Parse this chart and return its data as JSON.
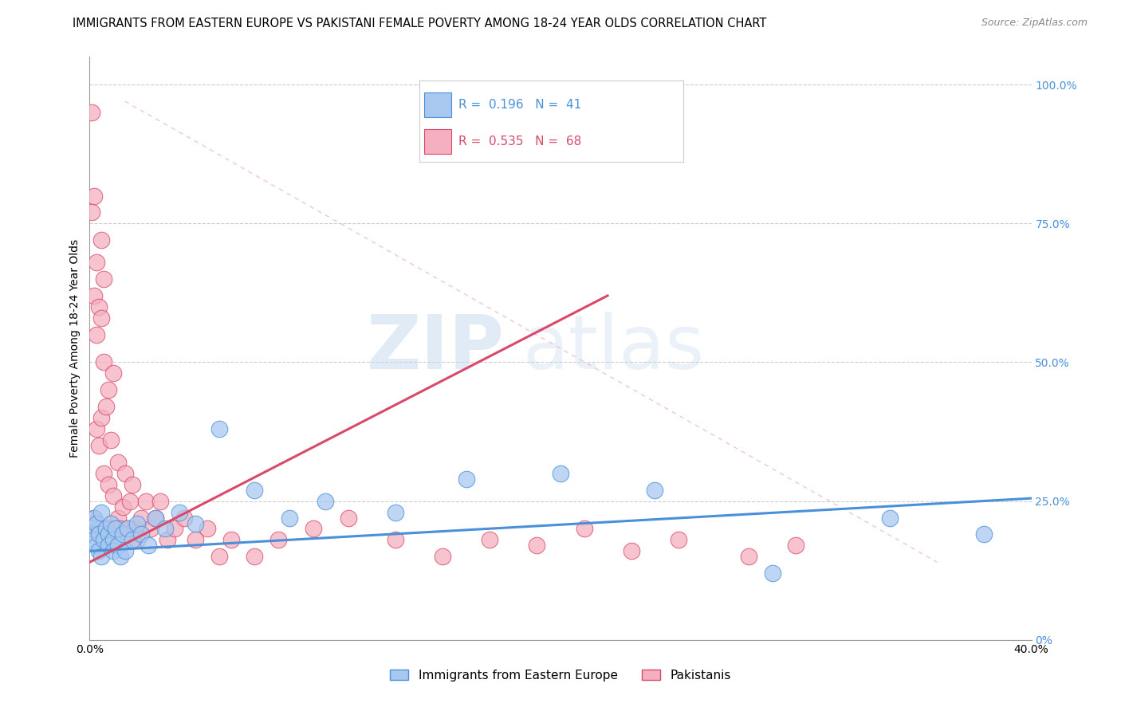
{
  "title": "IMMIGRANTS FROM EASTERN EUROPE VS PAKISTANI FEMALE POVERTY AMONG 18-24 YEAR OLDS CORRELATION CHART",
  "source": "Source: ZipAtlas.com",
  "ylabel": "Female Poverty Among 18-24 Year Olds",
  "xlim": [
    0.0,
    0.4
  ],
  "ylim": [
    0.0,
    1.05
  ],
  "legend_labels": [
    "Immigrants from Eastern Europe",
    "Pakistanis"
  ],
  "blue_R": "0.196",
  "blue_N": "41",
  "pink_R": "0.535",
  "pink_N": "68",
  "blue_color": "#a8c8f0",
  "pink_color": "#f4afc0",
  "blue_line_color": "#4a90d9",
  "pink_line_color": "#d94a6a",
  "watermark_zip": "ZIP",
  "watermark_atlas": "atlas",
  "blue_scatter_x": [
    0.001,
    0.002,
    0.002,
    0.003,
    0.003,
    0.004,
    0.004,
    0.005,
    0.005,
    0.006,
    0.007,
    0.008,
    0.008,
    0.009,
    0.01,
    0.01,
    0.011,
    0.012,
    0.013,
    0.014,
    0.015,
    0.016,
    0.018,
    0.02,
    0.022,
    0.025,
    0.028,
    0.032,
    0.038,
    0.045,
    0.055,
    0.07,
    0.085,
    0.1,
    0.13,
    0.16,
    0.2,
    0.24,
    0.29,
    0.34,
    0.38
  ],
  "blue_scatter_y": [
    0.2,
    0.22,
    0.18,
    0.21,
    0.17,
    0.19,
    0.16,
    0.23,
    0.15,
    0.18,
    0.2,
    0.19,
    0.17,
    0.21,
    0.18,
    0.16,
    0.2,
    0.17,
    0.15,
    0.19,
    0.16,
    0.2,
    0.18,
    0.21,
    0.19,
    0.17,
    0.22,
    0.2,
    0.23,
    0.21,
    0.38,
    0.27,
    0.22,
    0.25,
    0.23,
    0.29,
    0.3,
    0.27,
    0.12,
    0.22,
    0.19
  ],
  "pink_scatter_x": [
    0.001,
    0.001,
    0.001,
    0.002,
    0.002,
    0.002,
    0.002,
    0.003,
    0.003,
    0.003,
    0.003,
    0.004,
    0.004,
    0.004,
    0.005,
    0.005,
    0.005,
    0.005,
    0.006,
    0.006,
    0.006,
    0.006,
    0.007,
    0.007,
    0.008,
    0.008,
    0.008,
    0.009,
    0.009,
    0.01,
    0.01,
    0.01,
    0.011,
    0.012,
    0.012,
    0.013,
    0.014,
    0.015,
    0.016,
    0.017,
    0.018,
    0.019,
    0.02,
    0.022,
    0.024,
    0.026,
    0.028,
    0.03,
    0.033,
    0.036,
    0.04,
    0.045,
    0.05,
    0.055,
    0.06,
    0.07,
    0.08,
    0.095,
    0.11,
    0.13,
    0.15,
    0.17,
    0.19,
    0.21,
    0.23,
    0.25,
    0.28,
    0.3
  ],
  "pink_scatter_y": [
    0.2,
    0.77,
    0.95,
    0.2,
    0.22,
    0.62,
    0.8,
    0.2,
    0.38,
    0.55,
    0.68,
    0.2,
    0.35,
    0.6,
    0.2,
    0.4,
    0.58,
    0.72,
    0.2,
    0.3,
    0.5,
    0.65,
    0.2,
    0.42,
    0.2,
    0.28,
    0.45,
    0.2,
    0.36,
    0.2,
    0.26,
    0.48,
    0.2,
    0.22,
    0.32,
    0.2,
    0.24,
    0.3,
    0.2,
    0.25,
    0.28,
    0.2,
    0.18,
    0.22,
    0.25,
    0.2,
    0.22,
    0.25,
    0.18,
    0.2,
    0.22,
    0.18,
    0.2,
    0.15,
    0.18,
    0.15,
    0.18,
    0.2,
    0.22,
    0.18,
    0.15,
    0.18,
    0.17,
    0.2,
    0.16,
    0.18,
    0.15,
    0.17
  ],
  "title_fontsize": 10.5,
  "source_fontsize": 9,
  "axis_label_fontsize": 10,
  "tick_fontsize": 10,
  "legend_fontsize": 11
}
